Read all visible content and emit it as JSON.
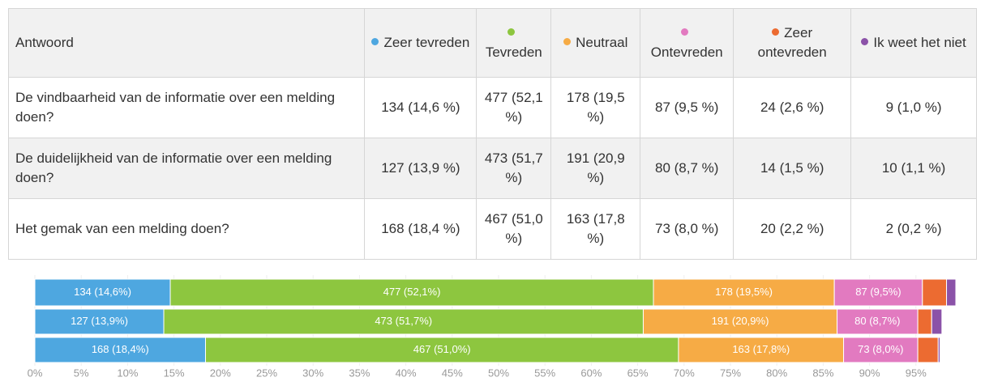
{
  "table": {
    "header_first": "Antwoord",
    "rows": [
      [
        "De vindbaarheid van de informatie over een melding doen?",
        "134 (14,6 %)",
        "477 (52,1 %)",
        "178 (19,5 %)",
        "87 (9,5 %)",
        "24 (2,6 %)",
        "9 (1,0 %)"
      ],
      [
        "De duidelijkheid van de informatie over een melding doen?",
        "127 (13,9 %)",
        "473 (51,7 %)",
        "191 (20,9 %)",
        "80 (8,7 %)",
        "14 (1,5 %)",
        "10 (1,1 %)"
      ],
      [
        "Het gemak van een melding doen?",
        "168 (18,4 %)",
        "467 (51,0 %)",
        "163 (17,8 %)",
        "73 (8,0 %)",
        "20 (2,2 %)",
        "2 (0,2 %)"
      ]
    ]
  },
  "chart_data": {
    "type": "stacked_barh",
    "series": [
      {
        "name": "Zeer tevreden",
        "color": "#4ea7e0",
        "values": [
          14.6,
          13.9,
          18.4
        ],
        "value_labels": [
          "134 (14,6%)",
          "127 (13,9%)",
          "168 (18,4%)"
        ]
      },
      {
        "name": "Tevreden",
        "color": "#8dc63f",
        "values": [
          52.1,
          51.7,
          51.0
        ],
        "value_labels": [
          "477 (52,1%)",
          "473 (51,7%)",
          "467 (51,0%)"
        ]
      },
      {
        "name": "Neutraal",
        "color": "#f6ab45",
        "values": [
          19.5,
          20.9,
          17.8
        ],
        "value_labels": [
          "178 (19,5%)",
          "191 (20,9%)",
          "163 (17,8%)"
        ]
      },
      {
        "name": "Ontevreden",
        "color": "#e27ac0",
        "values": [
          9.5,
          8.7,
          8.0
        ],
        "value_labels": [
          "87 (9,5%)",
          "80 (8,7%)",
          "73 (8,0%)"
        ]
      },
      {
        "name": "Zeer ontevreden",
        "color": "#ec6b31",
        "values": [
          2.6,
          1.5,
          2.2
        ],
        "value_labels": [
          null,
          null,
          null
        ]
      },
      {
        "name": "Ik weet het niet",
        "color": "#8b52a8",
        "values": [
          1.0,
          1.1,
          0.2
        ],
        "value_labels": [
          null,
          null,
          null
        ]
      }
    ],
    "xlim": [
      0,
      100
    ],
    "xticks": [
      {
        "value": 0,
        "label": "0%"
      },
      {
        "value": 5,
        "label": "5%"
      },
      {
        "value": 10,
        "label": "10%"
      },
      {
        "value": 15,
        "label": "15%"
      },
      {
        "value": 20,
        "label": "20%"
      },
      {
        "value": 25,
        "label": "25%"
      },
      {
        "value": 30,
        "label": "30%"
      },
      {
        "value": 35,
        "label": "35%"
      },
      {
        "value": 40,
        "label": "40%"
      },
      {
        "value": 45,
        "label": "45%"
      },
      {
        "value": 50,
        "label": "50%"
      },
      {
        "value": 55,
        "label": "55%"
      },
      {
        "value": 60,
        "label": "60%"
      },
      {
        "value": 65,
        "label": "65%"
      },
      {
        "value": 70,
        "label": "70%"
      },
      {
        "value": 75,
        "label": "75%"
      },
      {
        "value": 80,
        "label": "80%"
      },
      {
        "value": 85,
        "label": "85%"
      },
      {
        "value": 90,
        "label": "90%"
      },
      {
        "value": 95,
        "label": "95%"
      }
    ],
    "grid": true
  }
}
